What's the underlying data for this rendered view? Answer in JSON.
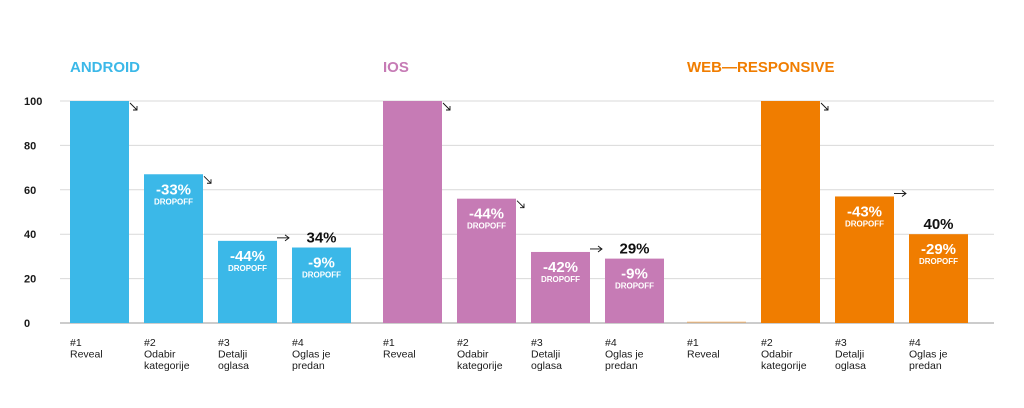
{
  "chart_data": [
    {
      "type": "bar",
      "title": "ANDROID",
      "color": "#3bb8e8",
      "ylim": [
        0,
        100
      ],
      "yticks": [
        "0",
        "20",
        "40",
        "60",
        "80",
        "100"
      ],
      "categories": [
        [
          "#1",
          "Reveal"
        ],
        [
          "#2",
          "Odabir",
          "kategorije"
        ],
        [
          "#3",
          "Detalji",
          "oglasa"
        ],
        [
          "#4",
          "Oglas je",
          "predan"
        ]
      ],
      "values": [
        100,
        67,
        37,
        34
      ],
      "dropoffs": [
        "",
        "-33%",
        "-44%",
        "-9%"
      ],
      "dropoff_word": "DROPOFF",
      "final_label": "34%"
    },
    {
      "type": "bar",
      "title": "IOS",
      "color": "#c67bb5",
      "ylim": [
        0,
        100
      ],
      "categories": [
        [
          "#1",
          "Reveal"
        ],
        [
          "#2",
          "Odabir",
          "kategorije"
        ],
        [
          "#3",
          "Detalji",
          "oglasa"
        ],
        [
          "#4",
          "Oglas je",
          "predan"
        ]
      ],
      "values": [
        100,
        56,
        32,
        29
      ],
      "dropoffs": [
        "",
        "-44%",
        "-42%",
        "-9%"
      ],
      "dropoff_word": "DROPOFF",
      "final_label": "29%"
    },
    {
      "type": "bar",
      "title": "WEB—RESPONSIVE",
      "color": "#f07d00",
      "ylim": [
        0,
        100
      ],
      "categories": [
        [
          "#1",
          "Reveal"
        ],
        [
          "#2",
          "Odabir",
          "kategorije"
        ],
        [
          "#3",
          "Detalji",
          "oglasa"
        ],
        [
          "#4",
          "Oglas je",
          "predan"
        ]
      ],
      "values": [
        0,
        100,
        57,
        40
      ],
      "dropoffs": [
        "",
        "",
        "-43%",
        "-29%"
      ],
      "dropoff_word": "DROPOFF",
      "final_label": "40%"
    }
  ]
}
